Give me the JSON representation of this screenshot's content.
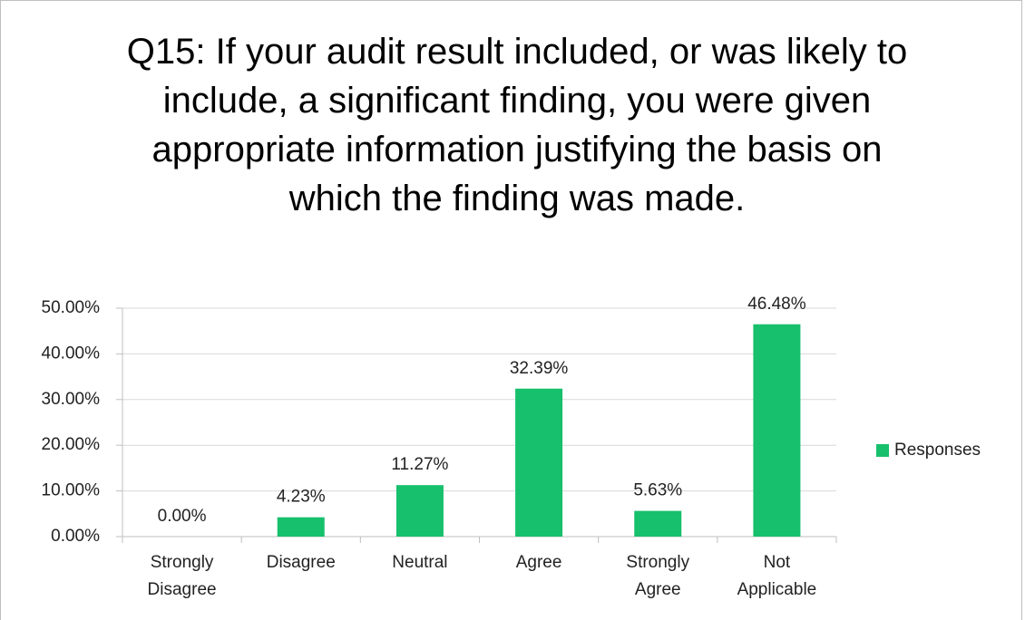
{
  "chart_data": {
    "type": "bar",
    "title": "Q15: If your audit result included, or was likely to include, a significant finding, you were given appropriate information justifying the basis on which the finding was made.",
    "categories": [
      "Strongly Disagree",
      "Disagree",
      "Neutral",
      "Agree",
      "Strongly Agree",
      "Not Applicable"
    ],
    "series": [
      {
        "name": "Responses",
        "color": "#17c06c",
        "values": [
          0,
          4.23,
          11.27,
          32.39,
          5.63,
          46.48
        ],
        "value_labels": [
          "0.00%",
          "4.23%",
          "11.27%",
          "32.39%",
          "5.63%",
          "46.48%"
        ]
      }
    ],
    "ylim": [
      0,
      50
    ],
    "yticks": [
      {
        "value": 0,
        "label": "0.00%"
      },
      {
        "value": 10,
        "label": "10.00%"
      },
      {
        "value": 20,
        "label": "20.00%"
      },
      {
        "value": 30,
        "label": "30.00%"
      },
      {
        "value": 40,
        "label": "40.00%"
      },
      {
        "value": 50,
        "label": "50.00%"
      }
    ],
    "grid": true,
    "legend": "right"
  }
}
